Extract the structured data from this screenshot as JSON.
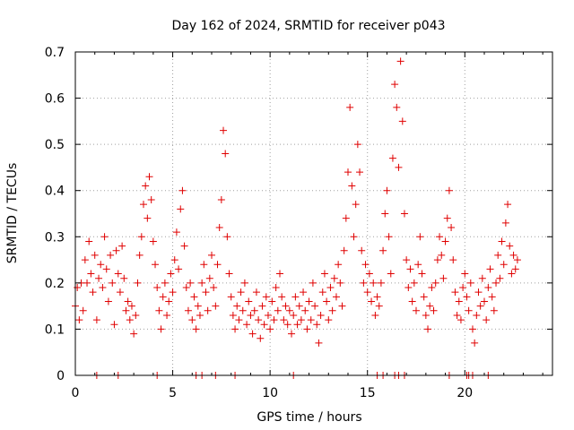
{
  "chart_data": {
    "type": "scatter",
    "title": "Day 162 of 2024, SRMTID for receiver p043",
    "xlabel": "GPS time / hours",
    "ylabel": "SRMTID / TECUs",
    "xlim": [
      0,
      24.5
    ],
    "ylim": [
      0,
      0.7
    ],
    "x_ticks": [
      "0",
      "5",
      "10",
      "15",
      "20"
    ],
    "x_tick_values": [
      0,
      5,
      10,
      15,
      20
    ],
    "y_ticks": [
      "0",
      "0.1",
      "0.2",
      "0.3",
      "0.4",
      "0.5",
      "0.6",
      "0.7"
    ],
    "y_tick_values": [
      0,
      0.1,
      0.2,
      0.3,
      0.4,
      0.5,
      0.6,
      0.7
    ],
    "grid": true,
    "marker": "+",
    "color": "#e00000",
    "series": [
      {
        "name": "SRMTID",
        "points": [
          [
            0.0,
            0.15
          ],
          [
            0.1,
            0.19
          ],
          [
            0.2,
            0.12
          ],
          [
            0.3,
            0.2
          ],
          [
            0.4,
            0.14
          ],
          [
            0.5,
            0.25
          ],
          [
            0.6,
            0.2
          ],
          [
            0.7,
            0.29
          ],
          [
            0.8,
            0.22
          ],
          [
            0.9,
            0.18
          ],
          [
            1.0,
            0.26
          ],
          [
            1.1,
            0.12
          ],
          [
            1.2,
            0.21
          ],
          [
            1.3,
            0.24
          ],
          [
            1.4,
            0.19
          ],
          [
            1.5,
            0.3
          ],
          [
            1.6,
            0.23
          ],
          [
            1.7,
            0.16
          ],
          [
            1.8,
            0.26
          ],
          [
            1.9,
            0.2
          ],
          [
            2.0,
            0.11
          ],
          [
            2.1,
            0.27
          ],
          [
            2.2,
            0.22
          ],
          [
            2.3,
            0.18
          ],
          [
            2.4,
            0.28
          ],
          [
            2.5,
            0.21
          ],
          [
            2.6,
            0.14
          ],
          [
            2.7,
            0.16
          ],
          [
            2.8,
            0.12
          ],
          [
            2.9,
            0.15
          ],
          [
            3.0,
            0.09
          ],
          [
            3.1,
            0.13
          ],
          [
            3.2,
            0.2
          ],
          [
            3.3,
            0.26
          ],
          [
            3.4,
            0.3
          ],
          [
            3.5,
            0.37
          ],
          [
            3.6,
            0.41
          ],
          [
            3.7,
            0.34
          ],
          [
            3.8,
            0.43
          ],
          [
            3.9,
            0.38
          ],
          [
            4.0,
            0.29
          ],
          [
            4.1,
            0.24
          ],
          [
            4.2,
            0.19
          ],
          [
            4.3,
            0.14
          ],
          [
            4.4,
            0.1
          ],
          [
            4.5,
            0.17
          ],
          [
            4.6,
            0.2
          ],
          [
            4.7,
            0.13
          ],
          [
            4.8,
            0.16
          ],
          [
            4.9,
            0.22
          ],
          [
            5.0,
            0.18
          ],
          [
            5.1,
            0.25
          ],
          [
            5.2,
            0.31
          ],
          [
            5.3,
            0.23
          ],
          [
            5.4,
            0.36
          ],
          [
            5.5,
            0.4
          ],
          [
            5.6,
            0.28
          ],
          [
            5.7,
            0.19
          ],
          [
            5.8,
            0.14
          ],
          [
            5.9,
            0.2
          ],
          [
            6.0,
            0.12
          ],
          [
            6.1,
            0.17
          ],
          [
            6.2,
            0.1
          ],
          [
            6.3,
            0.15
          ],
          [
            6.4,
            0.13
          ],
          [
            6.5,
            0.2
          ],
          [
            6.6,
            0.24
          ],
          [
            6.7,
            0.18
          ],
          [
            6.8,
            0.14
          ],
          [
            6.9,
            0.21
          ],
          [
            7.0,
            0.26
          ],
          [
            7.1,
            0.19
          ],
          [
            7.2,
            0.15
          ],
          [
            7.3,
            0.24
          ],
          [
            7.4,
            0.32
          ],
          [
            7.5,
            0.38
          ],
          [
            7.6,
            0.53
          ],
          [
            7.7,
            0.48
          ],
          [
            7.8,
            0.3
          ],
          [
            7.9,
            0.22
          ],
          [
            8.0,
            0.17
          ],
          [
            8.1,
            0.13
          ],
          [
            8.2,
            0.1
          ],
          [
            8.3,
            0.15
          ],
          [
            8.4,
            0.12
          ],
          [
            8.5,
            0.18
          ],
          [
            8.6,
            0.14
          ],
          [
            8.7,
            0.2
          ],
          [
            8.8,
            0.11
          ],
          [
            8.9,
            0.16
          ],
          [
            9.0,
            0.13
          ],
          [
            9.1,
            0.09
          ],
          [
            9.2,
            0.14
          ],
          [
            9.3,
            0.18
          ],
          [
            9.4,
            0.12
          ],
          [
            9.5,
            0.08
          ],
          [
            9.6,
            0.15
          ],
          [
            9.7,
            0.11
          ],
          [
            9.8,
            0.17
          ],
          [
            9.9,
            0.13
          ],
          [
            10.0,
            0.1
          ],
          [
            10.1,
            0.16
          ],
          [
            10.2,
            0.12
          ],
          [
            10.3,
            0.19
          ],
          [
            10.4,
            0.14
          ],
          [
            10.5,
            0.22
          ],
          [
            10.6,
            0.17
          ],
          [
            10.7,
            0.12
          ],
          [
            10.8,
            0.15
          ],
          [
            10.9,
            0.11
          ],
          [
            11.0,
            0.14
          ],
          [
            11.1,
            0.09
          ],
          [
            11.2,
            0.13
          ],
          [
            11.3,
            0.17
          ],
          [
            11.4,
            0.11
          ],
          [
            11.5,
            0.15
          ],
          [
            11.6,
            0.12
          ],
          [
            11.7,
            0.18
          ],
          [
            11.8,
            0.14
          ],
          [
            11.9,
            0.1
          ],
          [
            12.0,
            0.16
          ],
          [
            12.1,
            0.12
          ],
          [
            12.2,
            0.2
          ],
          [
            12.3,
            0.15
          ],
          [
            12.4,
            0.11
          ],
          [
            12.5,
            0.07
          ],
          [
            12.6,
            0.13
          ],
          [
            12.7,
            0.18
          ],
          [
            12.8,
            0.22
          ],
          [
            12.9,
            0.16
          ],
          [
            13.0,
            0.12
          ],
          [
            13.1,
            0.19
          ],
          [
            13.2,
            0.14
          ],
          [
            13.3,
            0.21
          ],
          [
            13.4,
            0.17
          ],
          [
            13.5,
            0.24
          ],
          [
            13.6,
            0.2
          ],
          [
            13.7,
            0.15
          ],
          [
            13.8,
            0.27
          ],
          [
            13.9,
            0.34
          ],
          [
            14.0,
            0.44
          ],
          [
            14.1,
            0.58
          ],
          [
            14.2,
            0.41
          ],
          [
            14.3,
            0.3
          ],
          [
            14.4,
            0.37
          ],
          [
            14.5,
            0.5
          ],
          [
            14.6,
            0.44
          ],
          [
            14.7,
            0.27
          ],
          [
            14.8,
            0.2
          ],
          [
            14.9,
            0.24
          ],
          [
            15.0,
            0.18
          ],
          [
            15.1,
            0.22
          ],
          [
            15.2,
            0.16
          ],
          [
            15.3,
            0.2
          ],
          [
            15.4,
            0.13
          ],
          [
            15.5,
            0.17
          ],
          [
            15.6,
            0.15
          ],
          [
            15.7,
            0.2
          ],
          [
            15.8,
            0.27
          ],
          [
            15.9,
            0.35
          ],
          [
            16.0,
            0.4
          ],
          [
            16.1,
            0.3
          ],
          [
            16.2,
            0.22
          ],
          [
            16.3,
            0.47
          ],
          [
            16.4,
            0.63
          ],
          [
            16.5,
            0.58
          ],
          [
            16.6,
            0.45
          ],
          [
            16.7,
            0.68
          ],
          [
            16.8,
            0.55
          ],
          [
            16.9,
            0.35
          ],
          [
            17.0,
            0.25
          ],
          [
            17.1,
            0.19
          ],
          [
            17.2,
            0.23
          ],
          [
            17.3,
            0.16
          ],
          [
            17.4,
            0.2
          ],
          [
            17.5,
            0.14
          ],
          [
            17.6,
            0.24
          ],
          [
            17.7,
            0.3
          ],
          [
            17.8,
            0.22
          ],
          [
            17.9,
            0.17
          ],
          [
            18.0,
            0.13
          ],
          [
            18.1,
            0.1
          ],
          [
            18.2,
            0.15
          ],
          [
            18.3,
            0.19
          ],
          [
            18.4,
            0.14
          ],
          [
            18.5,
            0.2
          ],
          [
            18.6,
            0.25
          ],
          [
            18.7,
            0.3
          ],
          [
            18.8,
            0.26
          ],
          [
            18.9,
            0.21
          ],
          [
            19.0,
            0.29
          ],
          [
            19.1,
            0.34
          ],
          [
            19.2,
            0.4
          ],
          [
            19.3,
            0.32
          ],
          [
            19.4,
            0.25
          ],
          [
            19.5,
            0.18
          ],
          [
            19.6,
            0.13
          ],
          [
            19.7,
            0.16
          ],
          [
            19.8,
            0.12
          ],
          [
            19.9,
            0.19
          ],
          [
            20.0,
            0.22
          ],
          [
            20.1,
            0.17
          ],
          [
            20.2,
            0.14
          ],
          [
            20.3,
            0.2
          ],
          [
            20.4,
            0.1
          ],
          [
            20.5,
            0.07
          ],
          [
            20.6,
            0.13
          ],
          [
            20.7,
            0.18
          ],
          [
            20.8,
            0.15
          ],
          [
            20.9,
            0.21
          ],
          [
            21.0,
            0.16
          ],
          [
            21.1,
            0.12
          ],
          [
            21.2,
            0.19
          ],
          [
            21.3,
            0.23
          ],
          [
            21.4,
            0.17
          ],
          [
            21.5,
            0.14
          ],
          [
            21.6,
            0.2
          ],
          [
            21.7,
            0.26
          ],
          [
            21.8,
            0.21
          ],
          [
            21.9,
            0.29
          ],
          [
            22.0,
            0.24
          ],
          [
            22.1,
            0.33
          ],
          [
            22.2,
            0.37
          ],
          [
            22.3,
            0.28
          ],
          [
            22.4,
            0.22
          ],
          [
            22.5,
            0.26
          ],
          [
            22.6,
            0.23
          ],
          [
            22.7,
            0.25
          ]
        ],
        "zero_points": [
          1.1,
          2.2,
          4.2,
          6.2,
          6.5,
          7.2,
          8.2,
          11.2,
          15.5,
          15.8,
          16.4,
          16.6,
          16.9,
          19.2,
          20.1,
          20.2,
          20.4,
          21.2
        ]
      }
    ]
  }
}
